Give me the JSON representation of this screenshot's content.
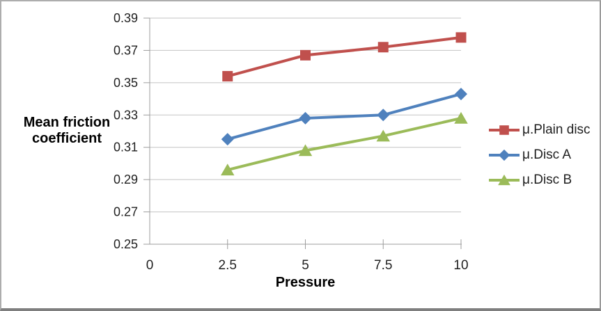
{
  "chart_data": {
    "type": "line",
    "x": [
      2.5,
      5,
      7.5,
      10
    ],
    "x_ticks": [
      0,
      2.5,
      5,
      7.5,
      10
    ],
    "y_ticks": [
      0.25,
      0.27,
      0.29,
      0.31,
      0.33,
      0.35,
      0.37,
      0.39
    ],
    "xlim": [
      0,
      10
    ],
    "ylim": [
      0.25,
      0.39
    ],
    "xlabel": "Pressure",
    "ylabel": "Mean friction coefficient",
    "grid": "horizontal",
    "legend_position": "right",
    "series": [
      {
        "name": "μ.Plain disc",
        "marker": "square",
        "color": "#C0504D",
        "values": [
          0.354,
          0.367,
          0.372,
          0.378
        ]
      },
      {
        "name": "μ.Disc A",
        "marker": "diamond",
        "color": "#4F81BD",
        "values": [
          0.315,
          0.328,
          0.33,
          0.343
        ]
      },
      {
        "name": "μ.Disc B",
        "marker": "triangle",
        "color": "#9BBB59",
        "values": [
          0.296,
          0.308,
          0.317,
          0.328
        ]
      }
    ]
  },
  "colors": {
    "gridline": "#C3C3C3",
    "axis": "#9C9C9C",
    "tick_text": "#1F1F1F",
    "title_text": "#000000",
    "frame_border_light": "#ADADAD",
    "frame_border_dark": "#7F7F7F"
  }
}
